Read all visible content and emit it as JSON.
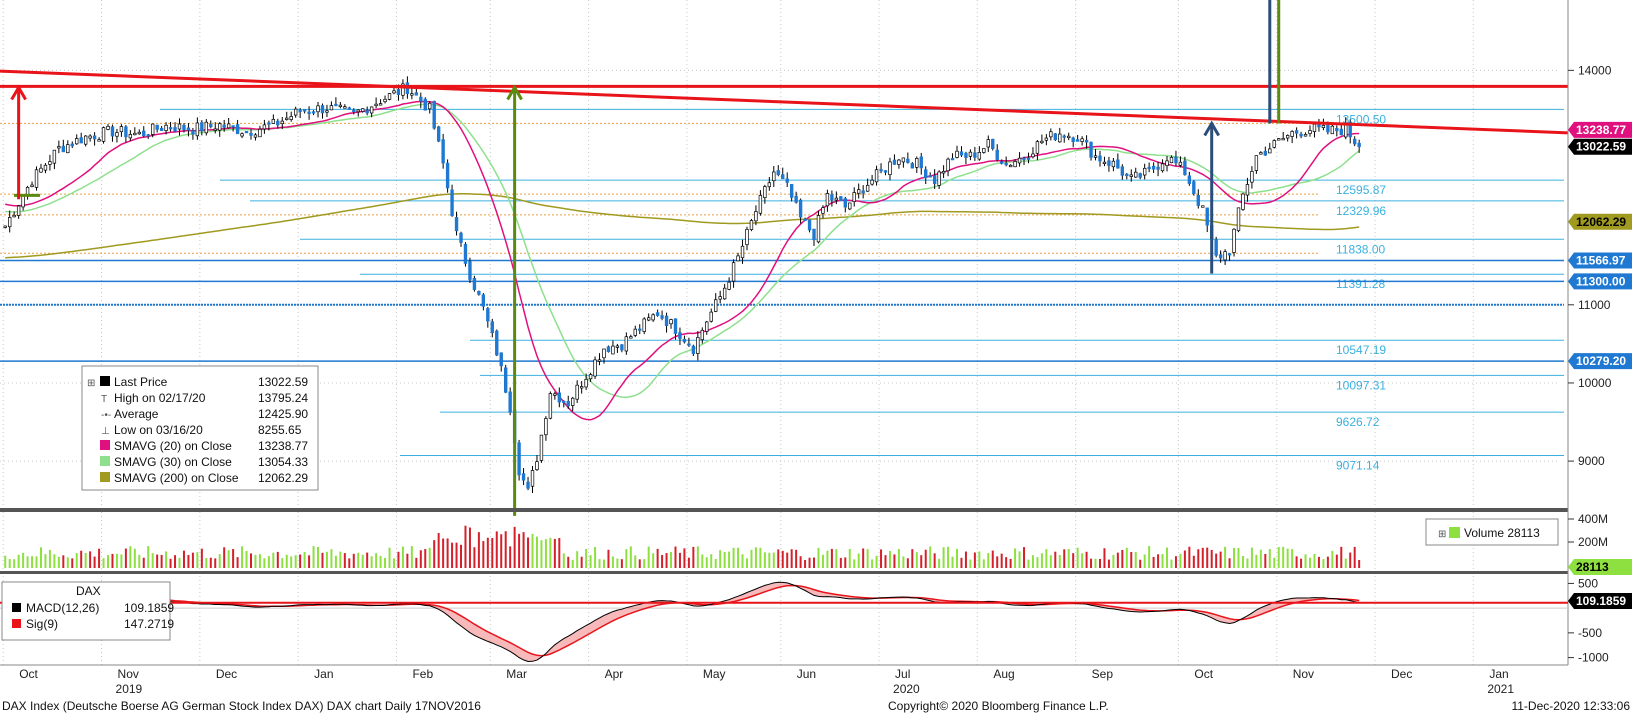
{
  "chart_data": {
    "type": "line",
    "title": "DAX Index (Deutsche Boerse AG German Stock Index DAX) DAX chart  Daily 17NOV2016",
    "copyright": "Copyright© 2020 Bloomberg Finance L.P.",
    "timestamp": "11-Dec-2020 12:33:06",
    "colors": {
      "up_candle": "#ffffff",
      "down_candle": "#1f78d1",
      "sma20": "#e0107f",
      "sma30": "#8ee08e",
      "sma200": "#a09a20",
      "trendline": "#e8141a",
      "fib": "#3bb0e0",
      "level": "#1f78d1",
      "arrow_green": "#5a8a10",
      "arrow_blue": "#2c4c7a",
      "volume_up": "#8de040",
      "volume_down": "#d4202a",
      "macd": "#000000",
      "sig": "#e8141a"
    },
    "price_axis": {
      "ylim": [
        8400,
        14900
      ],
      "ticks": [
        9000,
        10000,
        11000,
        14000
      ],
      "tick_labels": [
        "9000",
        "10000",
        "11000",
        "14000"
      ]
    },
    "volume_axis": {
      "tick_labels": [
        "400M",
        "200M"
      ],
      "current_label": "28113"
    },
    "macd_axis": {
      "ticks": [
        500,
        -500,
        -1000
      ],
      "tick_labels": [
        "500",
        "-500",
        "-1000"
      ],
      "ylim": [
        -1150,
        650
      ]
    },
    "x_axis": {
      "months": [
        "Oct",
        "Nov",
        "Dec",
        "Jan",
        "Feb",
        "Mar",
        "Apr",
        "May",
        "Jun",
        "Jul",
        "Aug",
        "Sep",
        "Oct",
        "Nov",
        "Dec",
        "Jan"
      ],
      "month_x_index": [
        0,
        22,
        44,
        66,
        88,
        109,
        131,
        153,
        174,
        196,
        218,
        240,
        263,
        285,
        307,
        329
      ],
      "years": [
        "2019",
        "2020",
        "2021"
      ],
      "year_month_position": [
        1,
        9,
        15
      ]
    },
    "price_tags": [
      {
        "label": "13238.77",
        "value": 13238.77,
        "bg": "#e0107f",
        "fg": "#ffffff"
      },
      {
        "label": "13022.59",
        "value": 13022.59,
        "bg": "#000000",
        "fg": "#ffffff"
      },
      {
        "label": "12062.29",
        "value": 12062.29,
        "bg": "#a09a20",
        "fg": "#000000"
      },
      {
        "label": "11566.97",
        "value": 11566.97,
        "bg": "#1f78d1",
        "fg": "#ffffff"
      },
      {
        "label": "11300.00",
        "value": 11300.0,
        "bg": "#1f78d1",
        "fg": "#ffffff"
      },
      {
        "label": "10279.20",
        "value": 10279.2,
        "bg": "#1f78d1",
        "fg": "#ffffff"
      }
    ],
    "fib_levels": [
      {
        "label": "13500.50",
        "value": 13500.5
      },
      {
        "label": "12595.87",
        "value": 12595.87
      },
      {
        "label": "12329.96",
        "value": 12329.96
      },
      {
        "label": "11838.00",
        "value": 11838.0
      },
      {
        "label": "11391.28",
        "value": 11391.28
      },
      {
        "label": "10547.19",
        "value": 10547.19
      },
      {
        "label": "10097.31",
        "value": 10097.31
      },
      {
        "label": "9626.72",
        "value": 9626.72
      },
      {
        "label": "9071.14",
        "value": 9071.14
      }
    ],
    "horizontal_levels": [
      11566.97,
      11300.0,
      11000.0,
      10279.2
    ],
    "resistance_line": 13795.24,
    "trendline": {
      "x_index": [
        0,
        340
      ],
      "y": [
        13990,
        13200
      ]
    },
    "arrows": [
      {
        "color": "red",
        "x_index": 3,
        "from": 12350,
        "to": 13780
      },
      {
        "color": "green",
        "x_index": 114,
        "from": 8300,
        "to": 13780
      },
      {
        "color": "green",
        "x_index": 285,
        "from": 13320,
        "to": 15000
      },
      {
        "color": "blue",
        "x_index": 283,
        "from": 13320,
        "to": 15000
      },
      {
        "color": "blue",
        "x_index": 270,
        "from": 11400,
        "to": 13320
      }
    ],
    "legend": {
      "rows": [
        {
          "label": "Last Price",
          "value": "13022.59"
        },
        {
          "label": "High on 02/17/20",
          "value": "13795.24"
        },
        {
          "label": "Average",
          "value": "12425.90"
        },
        {
          "label": "Low on 03/16/20",
          "value": "8255.65"
        },
        {
          "label": "SMAVG (20)  on Close",
          "value": "13238.77"
        },
        {
          "label": "SMAVG (30)  on Close",
          "value": "13054.33"
        },
        {
          "label": "SMAVG (200)  on Close",
          "value": "12062.29"
        }
      ]
    },
    "volume_legend": {
      "label": "Volume 28113"
    },
    "macd_legend": {
      "title": "DAX",
      "rows": [
        {
          "label": "MACD(12,26)",
          "value": "109.1859"
        },
        {
          "label": "Sig(9)",
          "value": "147.2719"
        }
      ],
      "current_label": "109.1859"
    },
    "close_anchors": [
      [
        0,
        12010
      ],
      [
        6,
        12600
      ],
      [
        12,
        13000
      ],
      [
        18,
        13150
      ],
      [
        24,
        13220
      ],
      [
        30,
        13180
      ],
      [
        36,
        13290
      ],
      [
        42,
        13250
      ],
      [
        48,
        13300
      ],
      [
        54,
        13220
      ],
      [
        60,
        13300
      ],
      [
        66,
        13480
      ],
      [
        72,
        13520
      ],
      [
        78,
        13440
      ],
      [
        84,
        13620
      ],
      [
        90,
        13780
      ],
      [
        95,
        13500
      ],
      [
        98,
        12800
      ],
      [
        101,
        11900
      ],
      [
        104,
        11400
      ],
      [
        107,
        10950
      ],
      [
        110,
        10400
      ],
      [
        113,
        9700
      ],
      [
        115,
        8900
      ],
      [
        117,
        8600
      ],
      [
        119,
        9050
      ],
      [
        122,
        9900
      ],
      [
        126,
        9750
      ],
      [
        130,
        10100
      ],
      [
        134,
        10450
      ],
      [
        138,
        10500
      ],
      [
        142,
        10700
      ],
      [
        146,
        10900
      ],
      [
        150,
        10700
      ],
      [
        154,
        10450
      ],
      [
        157,
        10800
      ],
      [
        160,
        11100
      ],
      [
        164,
        11600
      ],
      [
        168,
        12200
      ],
      [
        172,
        12700
      ],
      [
        175,
        12500
      ],
      [
        178,
        12100
      ],
      [
        181,
        11900
      ],
      [
        184,
        12400
      ],
      [
        188,
        12250
      ],
      [
        192,
        12500
      ],
      [
        196,
        12700
      ],
      [
        200,
        12900
      ],
      [
        204,
        12800
      ],
      [
        208,
        12600
      ],
      [
        212,
        12900
      ],
      [
        216,
        12900
      ],
      [
        220,
        13050
      ],
      [
        224,
        12800
      ],
      [
        228,
        12900
      ],
      [
        232,
        13100
      ],
      [
        236,
        13200
      ],
      [
        240,
        13150
      ],
      [
        244,
        12900
      ],
      [
        248,
        12800
      ],
      [
        252,
        12600
      ],
      [
        256,
        12700
      ],
      [
        260,
        12900
      ],
      [
        264,
        12700
      ],
      [
        268,
        12200
      ],
      [
        271,
        11600
      ],
      [
        274,
        11700
      ],
      [
        277,
        12400
      ],
      [
        280,
        12900
      ],
      [
        284,
        13050
      ],
      [
        288,
        13200
      ],
      [
        292,
        13250
      ],
      [
        296,
        13220
      ],
      [
        300,
        13250
      ],
      [
        303,
        13022
      ]
    ],
    "bar_count": 304
  }
}
